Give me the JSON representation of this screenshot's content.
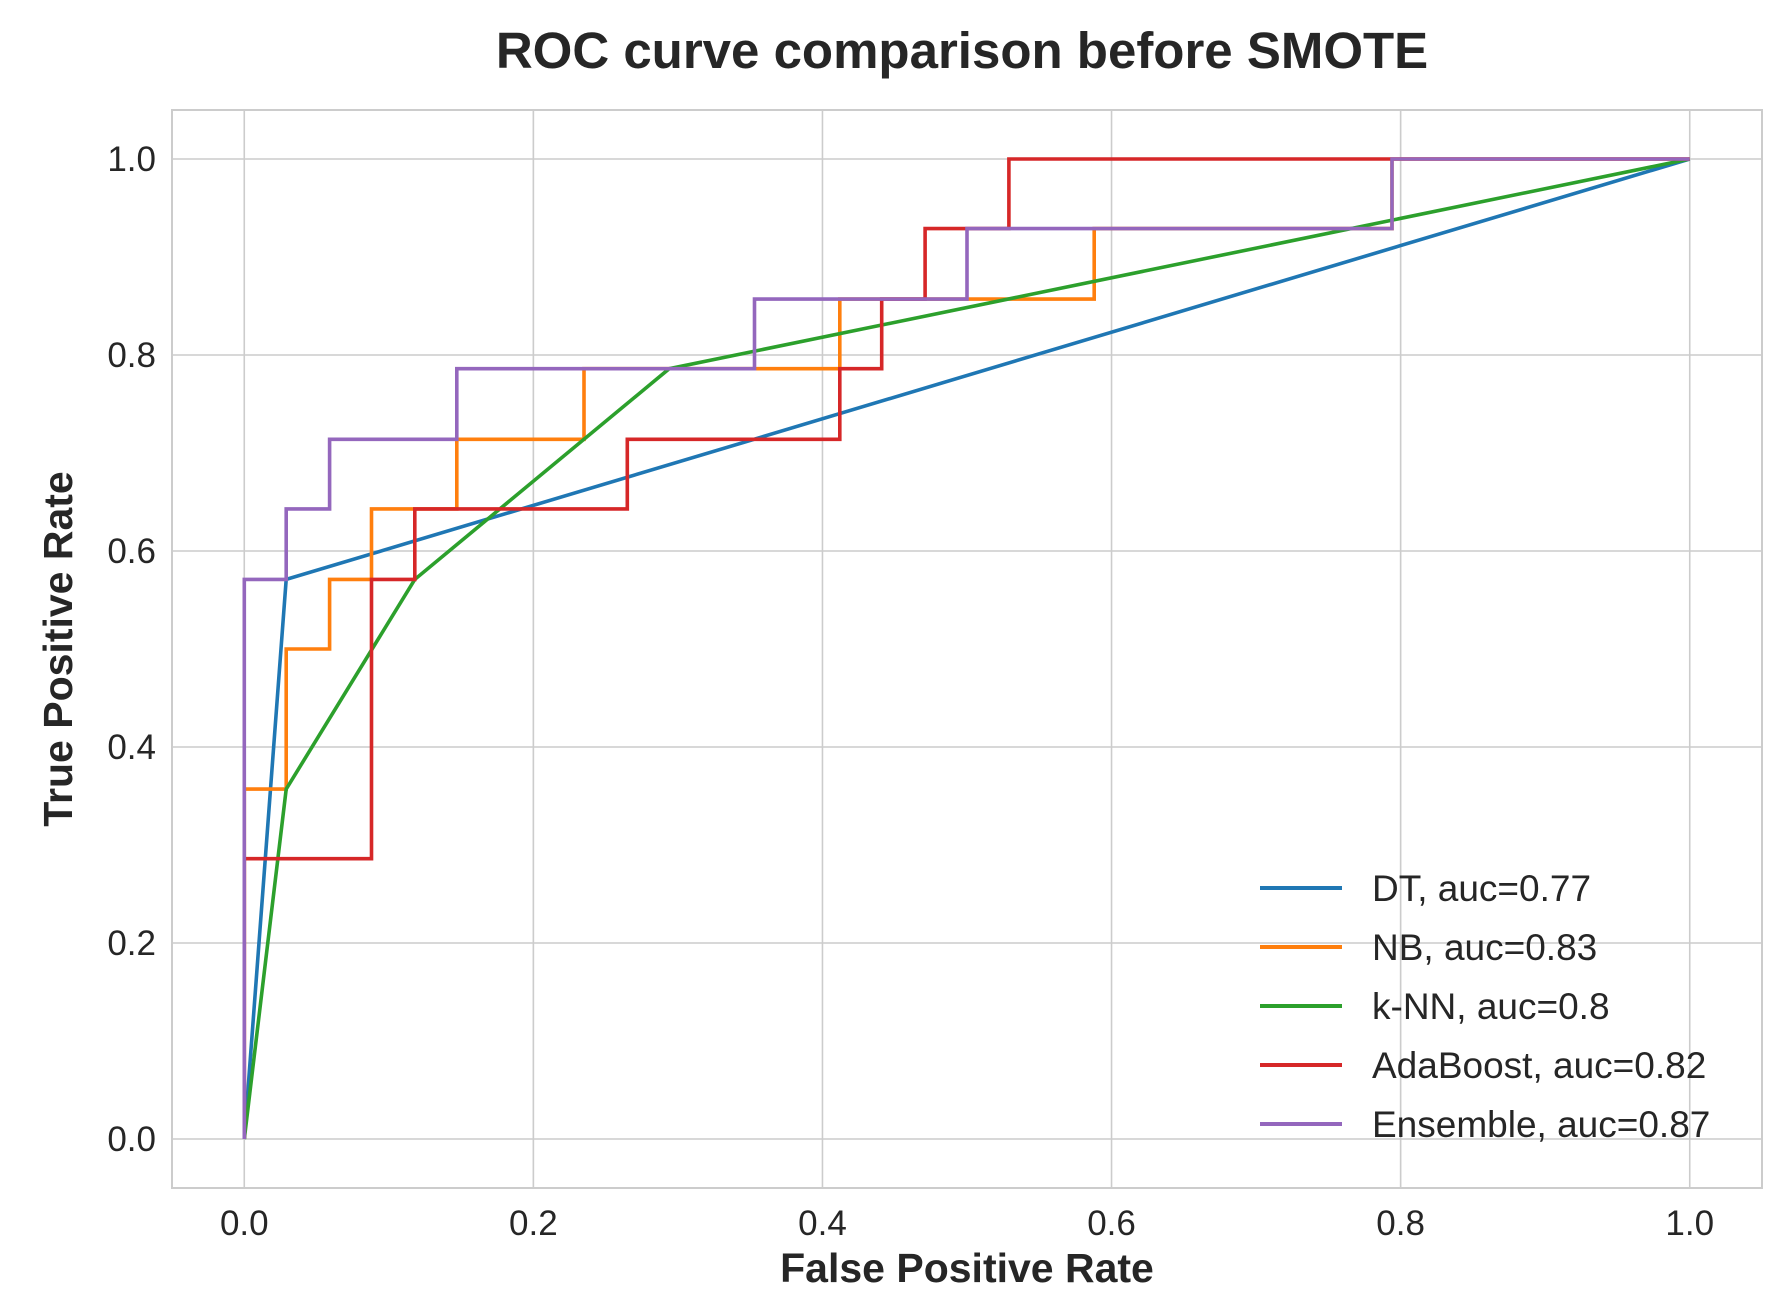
{
  "chart_data": {
    "type": "line",
    "title": "ROC curve comparison before SMOTE",
    "xlabel": "False Positive Rate",
    "ylabel": "True Positive Rate",
    "xlim": [
      -0.05,
      1.05
    ],
    "ylim": [
      -0.05,
      1.05
    ],
    "xticks": [
      0.0,
      0.2,
      0.4,
      0.6,
      0.8,
      1.0
    ],
    "yticks": [
      0.0,
      0.2,
      0.4,
      0.6,
      0.8,
      1.0
    ],
    "xtick_labels": [
      "0.0",
      "0.2",
      "0.4",
      "0.6",
      "0.8",
      "1.0"
    ],
    "ytick_labels": [
      "0.0",
      "0.2",
      "0.4",
      "0.6",
      "0.8",
      "1.0"
    ],
    "grid": true,
    "legend_position": "bottom-right",
    "series": [
      {
        "name": "DT, auc=0.77",
        "color": "#1f77b4",
        "x": [
          0.0,
          0.029,
          1.0
        ],
        "y": [
          0.0,
          0.571,
          1.0
        ]
      },
      {
        "name": "NB, auc=0.83",
        "color": "#ff7f0e",
        "x": [
          0.0,
          0.0,
          0.029,
          0.029,
          0.059,
          0.059,
          0.088,
          0.088,
          0.147,
          0.147,
          0.235,
          0.235,
          0.412,
          0.412,
          0.5,
          0.5,
          0.588,
          0.588,
          0.794,
          0.794,
          1.0
        ],
        "y": [
          0.0,
          0.357,
          0.357,
          0.5,
          0.5,
          0.571,
          0.571,
          0.643,
          0.643,
          0.714,
          0.714,
          0.786,
          0.786,
          0.857,
          0.857,
          0.857,
          0.857,
          0.929,
          0.929,
          1.0,
          1.0
        ]
      },
      {
        "name": "k-NN, auc=0.8",
        "color": "#2ca02c",
        "x": [
          0.0,
          0.029,
          0.118,
          0.294,
          1.0
        ],
        "y": [
          0.0,
          0.357,
          0.571,
          0.786,
          1.0
        ]
      },
      {
        "name": "AdaBoost, auc=0.82",
        "color": "#d62728",
        "x": [
          0.0,
          0.0,
          0.088,
          0.088,
          0.118,
          0.118,
          0.265,
          0.265,
          0.412,
          0.412,
          0.441,
          0.441,
          0.471,
          0.471,
          0.529,
          0.529,
          0.794,
          0.794,
          1.0
        ],
        "y": [
          0.0,
          0.286,
          0.286,
          0.571,
          0.571,
          0.643,
          0.643,
          0.714,
          0.714,
          0.786,
          0.786,
          0.857,
          0.857,
          0.929,
          0.929,
          1.0,
          1.0,
          1.0,
          1.0
        ]
      },
      {
        "name": "Ensemble, auc=0.87",
        "color": "#9467bd",
        "x": [
          0.0,
          0.0,
          0.029,
          0.029,
          0.059,
          0.059,
          0.147,
          0.147,
          0.353,
          0.353,
          0.5,
          0.5,
          0.794,
          0.794,
          1.0
        ],
        "y": [
          0.0,
          0.571,
          0.571,
          0.643,
          0.643,
          0.714,
          0.714,
          0.786,
          0.786,
          0.857,
          0.857,
          0.929,
          0.929,
          1.0,
          1.0
        ]
      }
    ]
  }
}
